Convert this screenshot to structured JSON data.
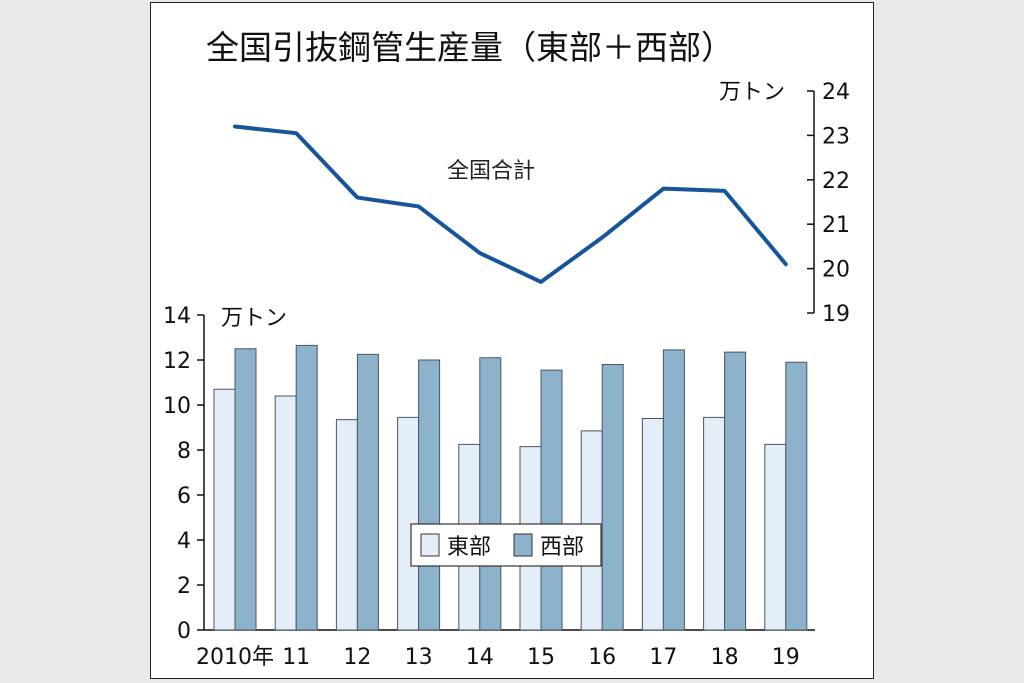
{
  "title": "全国引抜鋼管生産量（東部＋西部）",
  "chart_data": [
    {
      "type": "line",
      "series": [
        {
          "name": "全国合計",
          "values": [
            23.2,
            23.05,
            21.6,
            21.4,
            20.35,
            19.7,
            20.7,
            21.8,
            21.75,
            20.1
          ]
        }
      ],
      "categories": [
        "2010年",
        "11",
        "12",
        "13",
        "14",
        "15",
        "16",
        "17",
        "18",
        "19"
      ],
      "unit": "万トン",
      "ylim": [
        19,
        24
      ],
      "yticks": [
        "19",
        "20",
        "21",
        "22",
        "23",
        "24"
      ],
      "axis_side": "right",
      "color": "#16559a"
    },
    {
      "type": "bar",
      "categories": [
        "2010年",
        "11",
        "12",
        "13",
        "14",
        "15",
        "16",
        "17",
        "18",
        "19"
      ],
      "series": [
        {
          "name": "東部",
          "values": [
            10.7,
            10.4,
            9.35,
            9.45,
            8.25,
            8.15,
            8.85,
            9.4,
            9.45,
            8.25
          ],
          "color": "#e3eef9"
        },
        {
          "name": "西部",
          "values": [
            12.5,
            12.65,
            12.25,
            12.0,
            12.1,
            11.55,
            11.8,
            12.45,
            12.35,
            11.9
          ],
          "color": "#8cb2cc"
        }
      ],
      "unit": "万トン",
      "ylim": [
        0,
        14
      ],
      "yticks": [
        "0",
        "2",
        "4",
        "6",
        "8",
        "10",
        "12",
        "14"
      ],
      "legend": "center"
    }
  ]
}
